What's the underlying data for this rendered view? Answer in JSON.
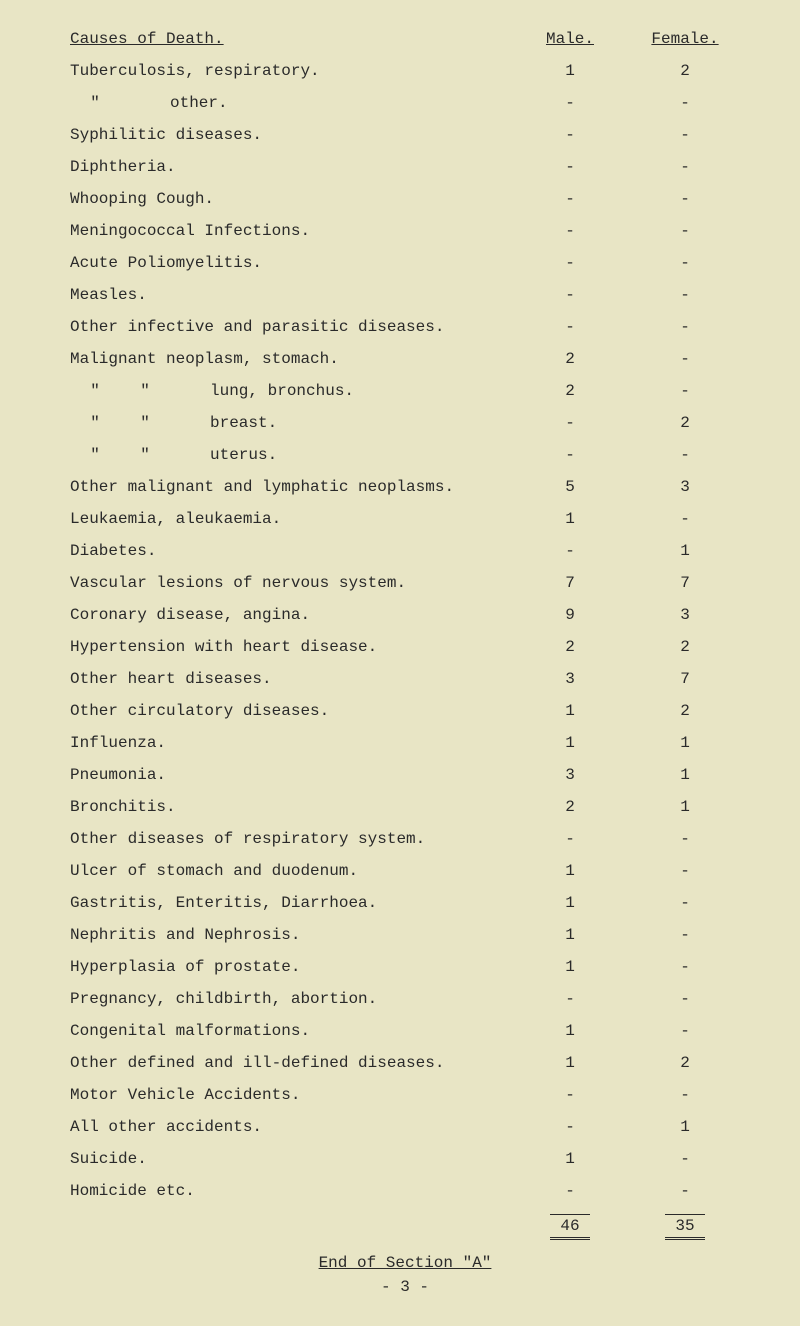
{
  "header": {
    "cause_label": "Causes of Death.",
    "male_label": "Male.",
    "female_label": "Female."
  },
  "rows": [
    {
      "cause": "Tuberculosis, respiratory.",
      "male": "1",
      "female": "2"
    },
    {
      "ditto": 1,
      "cause": "other.",
      "male": "-",
      "female": "-"
    },
    {
      "cause": "Syphilitic diseases.",
      "male": "-",
      "female": "-"
    },
    {
      "cause": "Diphtheria.",
      "male": "-",
      "female": "-"
    },
    {
      "cause": "Whooping Cough.",
      "male": "-",
      "female": "-"
    },
    {
      "cause": "Meningococcal Infections.",
      "male": "-",
      "female": "-"
    },
    {
      "cause": "Acute Poliomyelitis.",
      "male": "-",
      "female": "-"
    },
    {
      "cause": "Measles.",
      "male": "-",
      "female": "-"
    },
    {
      "cause": "Other infective and parasitic diseases.",
      "male": "-",
      "female": "-"
    },
    {
      "cause": "Malignant neoplasm, stomach.",
      "male": "2",
      "female": "-"
    },
    {
      "ditto": 2,
      "cause": "lung, bronchus.",
      "male": "2",
      "female": "-"
    },
    {
      "ditto": 2,
      "cause": "breast.",
      "male": "-",
      "female": "2"
    },
    {
      "ditto": 2,
      "cause": "uterus.",
      "male": "-",
      "female": "-"
    },
    {
      "cause": "Other malignant and lymphatic neoplasms.",
      "male": "5",
      "female": "3"
    },
    {
      "cause": "Leukaemia, aleukaemia.",
      "male": "1",
      "female": "-"
    },
    {
      "cause": "Diabetes.",
      "male": "-",
      "female": "1"
    },
    {
      "cause": "Vascular lesions of nervous system.",
      "male": "7",
      "female": "7"
    },
    {
      "cause": "Coronary disease, angina.",
      "male": "9",
      "female": "3"
    },
    {
      "cause": "Hypertension with heart disease.",
      "male": "2",
      "female": "2"
    },
    {
      "cause": "Other heart diseases.",
      "male": "3",
      "female": "7"
    },
    {
      "cause": "Other circulatory diseases.",
      "male": "1",
      "female": "2"
    },
    {
      "cause": "Influenza.",
      "male": "1",
      "female": "1"
    },
    {
      "cause": "Pneumonia.",
      "male": "3",
      "female": "1"
    },
    {
      "cause": "Bronchitis.",
      "male": "2",
      "female": "1"
    },
    {
      "cause": "Other diseases of respiratory system.",
      "male": "-",
      "female": "-"
    },
    {
      "cause": "Ulcer of stomach and duodenum.",
      "male": "1",
      "female": "-"
    },
    {
      "cause": "Gastritis, Enteritis, Diarrhoea.",
      "male": "1",
      "female": "-"
    },
    {
      "cause": "Nephritis and Nephrosis.",
      "male": "1",
      "female": "-"
    },
    {
      "cause": "Hyperplasia of prostate.",
      "male": "1",
      "female": "-"
    },
    {
      "cause": "Pregnancy, childbirth, abortion.",
      "male": "-",
      "female": "-"
    },
    {
      "cause": "Congenital malformations.",
      "male": "1",
      "female": "-"
    },
    {
      "cause": "Other defined and ill-defined diseases.",
      "male": "1",
      "female": "2"
    },
    {
      "cause": "Motor Vehicle Accidents.",
      "male": "-",
      "female": "-"
    },
    {
      "cause": "All other accidents.",
      "male": "-",
      "female": "1"
    },
    {
      "cause": "Suicide.",
      "male": "1",
      "female": "-"
    },
    {
      "cause": "Homicide etc.",
      "male": "-",
      "female": "-"
    }
  ],
  "totals": {
    "male": "46",
    "female": "35"
  },
  "footer": {
    "end_label": "End of Section \"A\"",
    "page_no": "- 3 -"
  },
  "dittomark": "\""
}
